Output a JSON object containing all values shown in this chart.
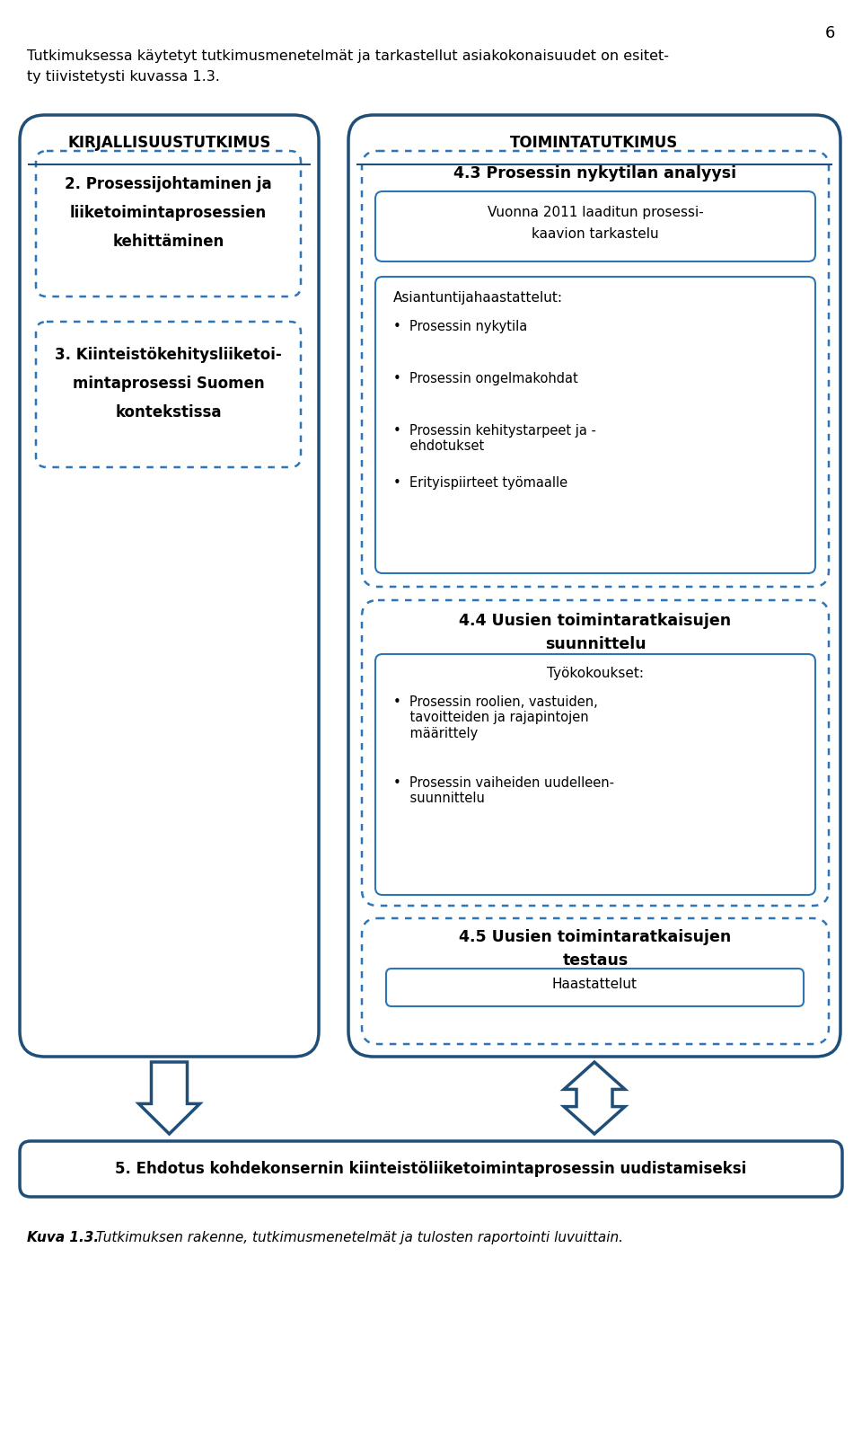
{
  "page_number": "6",
  "intro_text_line1": "Tutkimuksessa käytetyt tutkimusmenetelmät ja tarkastellut asiakokonaisuudet on esitet-",
  "intro_text_line2": "ty tiivistetysti kuvassa 1.3.",
  "left_col_title": "KIRJALLISUUSTUTKIMUS",
  "right_col_title": "TOIMINTATUTKIMUS",
  "left_box1_line1": "2. Prosessijohtaminen ja",
  "left_box1_line2": "liiketoimintaprosessien",
  "left_box1_line3": "kehittäminen",
  "left_box2_line1": "3. Kiinteistökehitysliiketoi-",
  "left_box2_line2": "mintaprosessi Suomen",
  "left_box2_line3": "kontekstissa",
  "right_box1_title": "4.3 Prosessin nykytilan analyysi",
  "right_box1_sub_line1": "Vuonna 2011 laaditun prosessi-",
  "right_box1_sub_line2": "kaavion tarkastelu",
  "right_box2_header": "Asiantuntijahaastattelut:",
  "right_box2_bullets": [
    "Prosessin nykytila",
    "Prosessin ongelmakohdat",
    "Prosessin kehitystarpeet ja -\n    ehdotukset",
    "Erityispiirteet työmaalle"
  ],
  "right_box3_title_line1": "4.4 Uusien toimintaratkaisujen",
  "right_box3_title_line2": "suunnittelu",
  "right_box3_sub_header": "Työkokoukset:",
  "right_box3_bullets": [
    "Prosessin roolien, vastuiden,\n    tavoitteiden ja rajapintojen\n    määrittely",
    "Prosessin vaiheiden uudelleen-\n    suunnittelu"
  ],
  "right_box4_title_line1": "4.5 Uusien toimintaratkaisujen",
  "right_box4_title_line2": "testaus",
  "right_box4_sub": "Haastattelut",
  "bottom_box_text": "5. Ehdotus kohdekonsernin kiinteistöliiketoimintaprosessin uudistamiseksi",
  "caption_italic": "Kuva 1.3.",
  "caption_normal": " Tutkimuksen rakenne, tutkimusmenetelmät ja tulosten raportointi luvuittain.",
  "color_dark_blue": "#1F4E79",
  "color_mid_blue": "#2E75B6",
  "bg_color": "#FFFFFF"
}
